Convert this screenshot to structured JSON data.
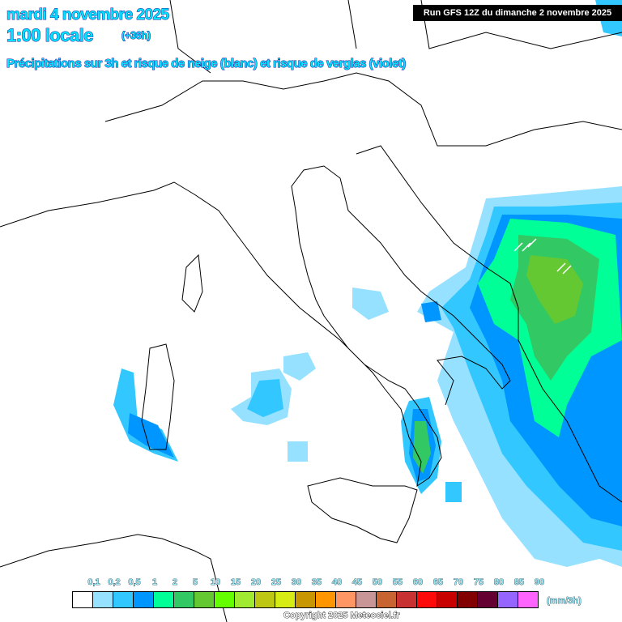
{
  "header": {
    "date": "mardi 4 novembre 2025",
    "time": "1:00 locale",
    "lead": "(+36h)",
    "subtitle": "Précipitations sur 3h et risque de neige (blanc) et risque de verglas (violet)",
    "run": "Run GFS 12Z du dimanche 2 novembre 2025"
  },
  "legend": {
    "labels": [
      "0,1",
      "0,2",
      "0,5",
      "1",
      "2",
      "5",
      "10",
      "15",
      "20",
      "25",
      "30",
      "35",
      "40",
      "45",
      "50",
      "55",
      "60",
      "65",
      "70",
      "75",
      "80",
      "85",
      "90"
    ],
    "colors": [
      "#ffffff",
      "#96e1ff",
      "#32c8ff",
      "#0096ff",
      "#00ff96",
      "#32c864",
      "#64c832",
      "#64ff00",
      "#a0eb32",
      "#bec814",
      "#d7eb14",
      "#c89600",
      "#ff9600",
      "#ff9664",
      "#c89696",
      "#c86432",
      "#c83232",
      "#ff0a0a",
      "#c80000",
      "#820000",
      "#640032",
      "#9664ff",
      "#ff64ff"
    ],
    "unit": "(mm/3h)"
  },
  "footer": {
    "copyright": "Copyright 2025 Meteociel.fr"
  },
  "map": {
    "snow_color": "#ffffff",
    "freezing_rain_color": "#9664ff"
  }
}
